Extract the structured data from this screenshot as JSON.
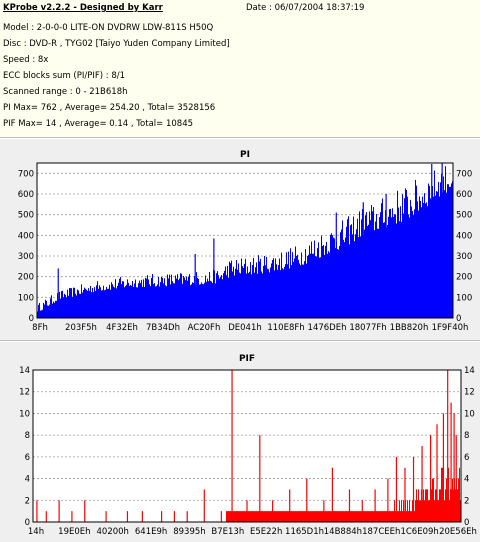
{
  "header": {
    "title": "KProbe v2.2.2 - Designed by Karr",
    "date": "Date : 06/07/2004 18:37:19",
    "lines": [
      "Model : 2-0-0-0 LITE-ON DVDRW LDW-811S   H50Q",
      "Disc : DVD-R , TYG02 [Taiyo Yuden Company Limited]",
      "Speed : 8x",
      "ECC blocks sum (PI/PIF) : 8/1",
      "Scanned range : 0 - 21B618h",
      "PI Max= 762 , Average= 254.20 , Total= 3528156",
      "PIF Max= 14 , Average= 0.14 , Total= 10845"
    ]
  },
  "chart_data": [
    {
      "type": "bar",
      "title": "PI",
      "color": "#0000ff",
      "ylim": [
        0,
        750
      ],
      "yticks": [
        0,
        100,
        200,
        300,
        400,
        500,
        600,
        700
      ],
      "xticks": [
        "8Fh",
        "203F5h",
        "4F32Eh",
        "7B34Dh",
        "AC20Fh",
        "DE041h",
        "110E8Fh",
        "1476DEh",
        "18077Fh",
        "1BB820h",
        "1F9F40h"
      ],
      "grid": true,
      "envelope": {
        "x": [
          0,
          0.02,
          0.05,
          0.1,
          0.15,
          0.2,
          0.24,
          0.28,
          0.32,
          0.36,
          0.4,
          0.44,
          0.46,
          0.5,
          0.54,
          0.58,
          0.62,
          0.66,
          0.7,
          0.74,
          0.78,
          0.82,
          0.86,
          0.9,
          0.94,
          0.97,
          1.0
        ],
        "min": [
          30,
          45,
          85,
          110,
          130,
          140,
          148,
          150,
          155,
          158,
          160,
          170,
          195,
          205,
          215,
          225,
          245,
          270,
          310,
          340,
          390,
          420,
          450,
          480,
          540,
          590,
          620
        ],
        "max": [
          70,
          95,
          130,
          160,
          185,
          200,
          210,
          215,
          220,
          225,
          230,
          240,
          290,
          300,
          310,
          330,
          350,
          400,
          440,
          480,
          540,
          570,
          620,
          660,
          700,
          740,
          762
        ]
      },
      "spikes": [
        {
          "x": 0.05,
          "value": 240
        },
        {
          "x": 0.237,
          "value": 110
        },
        {
          "x": 0.38,
          "value": 310
        },
        {
          "x": 0.425,
          "value": 385
        },
        {
          "x": 0.72,
          "value": 510
        },
        {
          "x": 0.785,
          "value": 560
        },
        {
          "x": 0.84,
          "value": 600
        },
        {
          "x": 0.95,
          "value": 745
        },
        {
          "x": 0.975,
          "value": 762
        }
      ]
    },
    {
      "type": "bar",
      "title": "PIF",
      "color": "#ff0000",
      "ylim": [
        0,
        14
      ],
      "yticks": [
        0,
        2,
        4,
        6,
        8,
        10,
        12,
        14
      ],
      "xticks": [
        "14h",
        "19E0Eh",
        "40200h",
        "641E9h",
        "89395h",
        "B7E13h",
        "E5E22h",
        "1165D1h",
        "14B884h",
        "187CEEh",
        "1C6E09h",
        "20E56Eh"
      ],
      "grid": true,
      "baseline": {
        "x": [
          0,
          0.45,
          0.46,
          0.6,
          0.75,
          0.82,
          0.86,
          0.9,
          0.93,
          0.96,
          1.0
        ],
        "value": [
          0,
          0,
          1,
          1,
          1,
          1,
          2,
          3,
          4,
          5,
          5
        ]
      },
      "spikes": [
        {
          "x": 0.008,
          "value": 2
        },
        {
          "x": 0.03,
          "value": 1
        },
        {
          "x": 0.06,
          "value": 2
        },
        {
          "x": 0.09,
          "value": 1
        },
        {
          "x": 0.12,
          "value": 2
        },
        {
          "x": 0.17,
          "value": 1
        },
        {
          "x": 0.22,
          "value": 1
        },
        {
          "x": 0.255,
          "value": 1
        },
        {
          "x": 0.3,
          "value": 1
        },
        {
          "x": 0.33,
          "value": 1
        },
        {
          "x": 0.36,
          "value": 1
        },
        {
          "x": 0.4,
          "value": 3
        },
        {
          "x": 0.44,
          "value": 1
        },
        {
          "x": 0.465,
          "value": 14
        },
        {
          "x": 0.5,
          "value": 2
        },
        {
          "x": 0.53,
          "value": 8
        },
        {
          "x": 0.56,
          "value": 2
        },
        {
          "x": 0.6,
          "value": 3
        },
        {
          "x": 0.64,
          "value": 4
        },
        {
          "x": 0.68,
          "value": 2
        },
        {
          "x": 0.7,
          "value": 5
        },
        {
          "x": 0.74,
          "value": 3
        },
        {
          "x": 0.77,
          "value": 2
        },
        {
          "x": 0.8,
          "value": 3
        },
        {
          "x": 0.83,
          "value": 4
        },
        {
          "x": 0.85,
          "value": 6
        },
        {
          "x": 0.87,
          "value": 5
        },
        {
          "x": 0.89,
          "value": 6
        },
        {
          "x": 0.91,
          "value": 7
        },
        {
          "x": 0.93,
          "value": 8
        },
        {
          "x": 0.945,
          "value": 9
        },
        {
          "x": 0.96,
          "value": 10
        },
        {
          "x": 0.97,
          "value": 14
        },
        {
          "x": 0.978,
          "value": 11
        },
        {
          "x": 0.985,
          "value": 10
        },
        {
          "x": 0.99,
          "value": 8
        }
      ]
    }
  ]
}
